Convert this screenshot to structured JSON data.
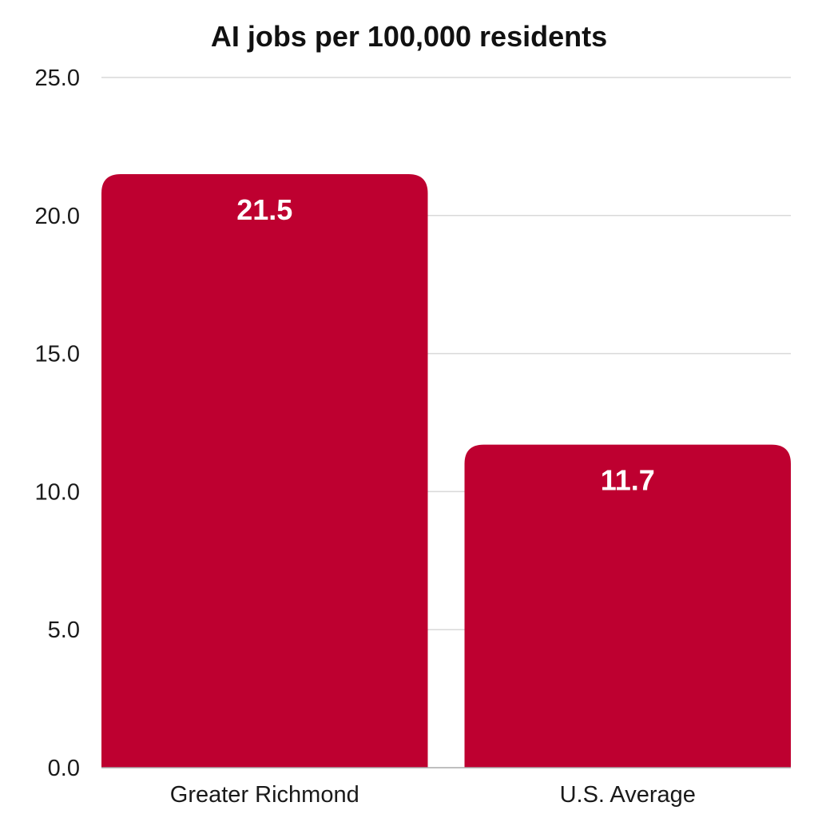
{
  "chart_data": {
    "type": "bar",
    "title": "AI jobs per 100,000 residents",
    "xlabel": "",
    "ylabel": "",
    "categories": [
      "Greater Richmond",
      "U.S. Average"
    ],
    "values": [
      21.5,
      11.7
    ],
    "value_labels": [
      "21.5",
      "11.7"
    ],
    "ylim": [
      0,
      25
    ],
    "yticks": [
      0,
      5,
      10,
      15,
      20,
      25
    ],
    "ytick_labels": [
      "0.0",
      "5.0",
      "10.0",
      "15.0",
      "20.0",
      "25.0"
    ],
    "grid": true,
    "legend": "none",
    "bar_color": "#BE0030",
    "grid_color": "#d9d9d9"
  }
}
